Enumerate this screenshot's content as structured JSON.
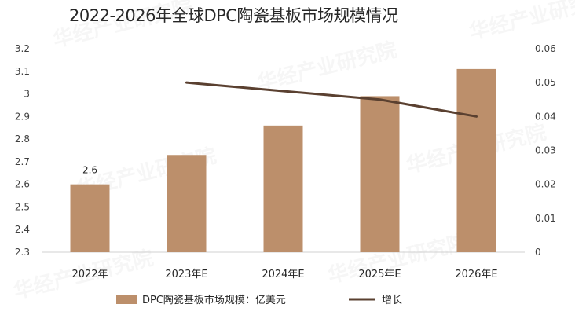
{
  "title": "2022-2026年全球DPC陶瓷基板市场规模情况",
  "chart_data": {
    "type": "bar",
    "categories": [
      "2022年",
      "2023年E",
      "2024年E",
      "2025年E",
      "2026年E"
    ],
    "series": [
      {
        "name": "DPC陶瓷基板市场规模：亿美元",
        "type": "bar",
        "axis": "left",
        "values": [
          2.6,
          2.73,
          2.86,
          2.99,
          3.11
        ],
        "color": "#bc8f6b"
      },
      {
        "name": "增长",
        "type": "line",
        "axis": "right",
        "values": [
          null,
          0.05,
          0.0475,
          0.045,
          0.04
        ],
        "color": "#5a4030"
      }
    ],
    "data_labels": [
      {
        "series": 0,
        "index": 0,
        "text": "2.6"
      }
    ],
    "left_axis": {
      "min": 2.3,
      "max": 3.2,
      "ticks": [
        "2.3",
        "2.4",
        "2.5",
        "2.6",
        "2.7",
        "2.8",
        "2.9",
        "3",
        "3.1",
        "3.2"
      ]
    },
    "right_axis": {
      "min": 0,
      "max": 0.06,
      "ticks": [
        "0",
        "0.01",
        "0.02",
        "0.03",
        "0.04",
        "0.05",
        "0.06"
      ]
    },
    "grid": false,
    "legend_position": "bottom"
  },
  "watermark": "华经产业研究院"
}
